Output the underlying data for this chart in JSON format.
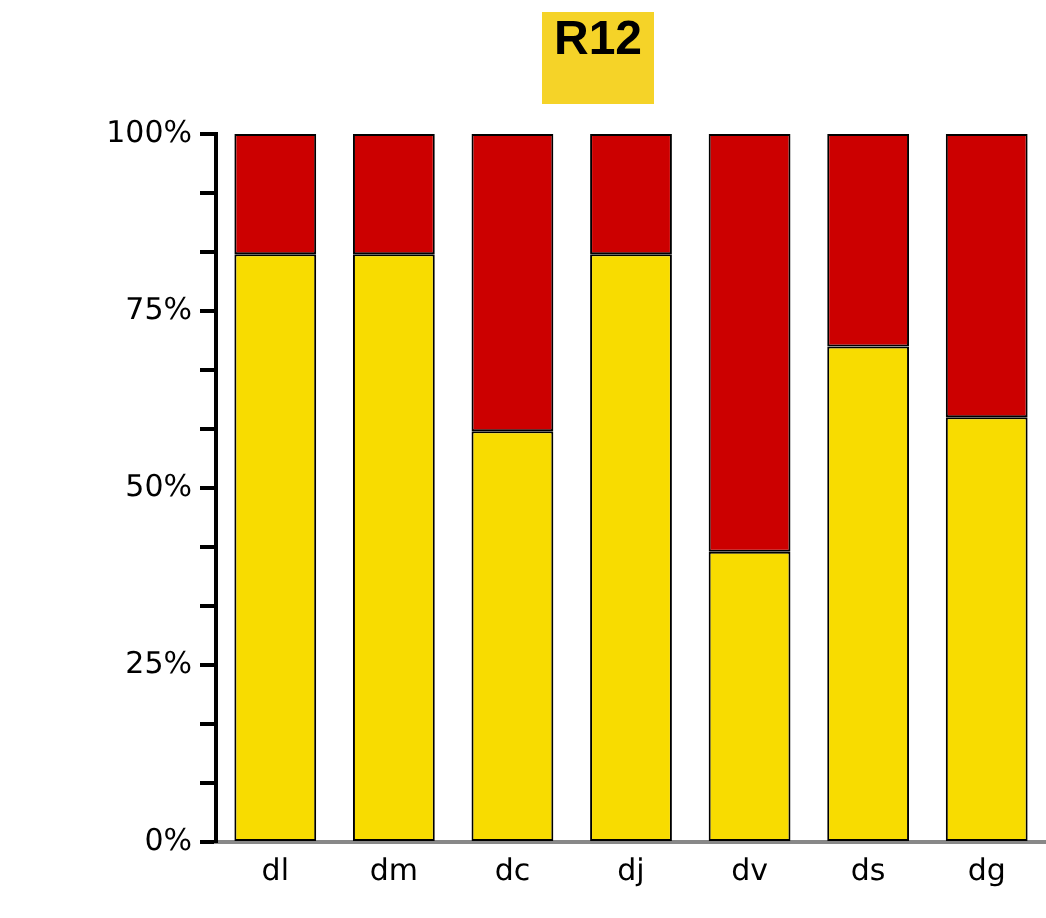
{
  "chart_data": {
    "type": "bar",
    "title": "R12",
    "stacked": true,
    "categories": [
      "dl",
      "dm",
      "dc",
      "dj",
      "dv",
      "ds",
      "dg"
    ],
    "series": [
      {
        "color": "#f8dc00",
        "values": [
          83,
          83,
          58,
          83,
          41,
          70,
          60
        ]
      },
      {
        "color": "#cc0000",
        "values": [
          17,
          17,
          42,
          17,
          59,
          30,
          40
        ]
      }
    ],
    "ylim": [
      0,
      100
    ],
    "yticks": [
      {
        "value": 0,
        "label": "0%"
      },
      {
        "value": 8.33,
        "label": null
      },
      {
        "value": 16.67,
        "label": null
      },
      {
        "value": 25,
        "label": "25%"
      },
      {
        "value": 33.33,
        "label": null
      },
      {
        "value": 41.67,
        "label": null
      },
      {
        "value": 50,
        "label": "50%"
      },
      {
        "value": 58.33,
        "label": null
      },
      {
        "value": 66.67,
        "label": null
      },
      {
        "value": 75,
        "label": "75%"
      },
      {
        "value": 83.33,
        "label": null
      },
      {
        "value": 91.67,
        "label": null
      },
      {
        "value": 100,
        "label": "100%"
      }
    ],
    "grid": false,
    "legend": false
  }
}
